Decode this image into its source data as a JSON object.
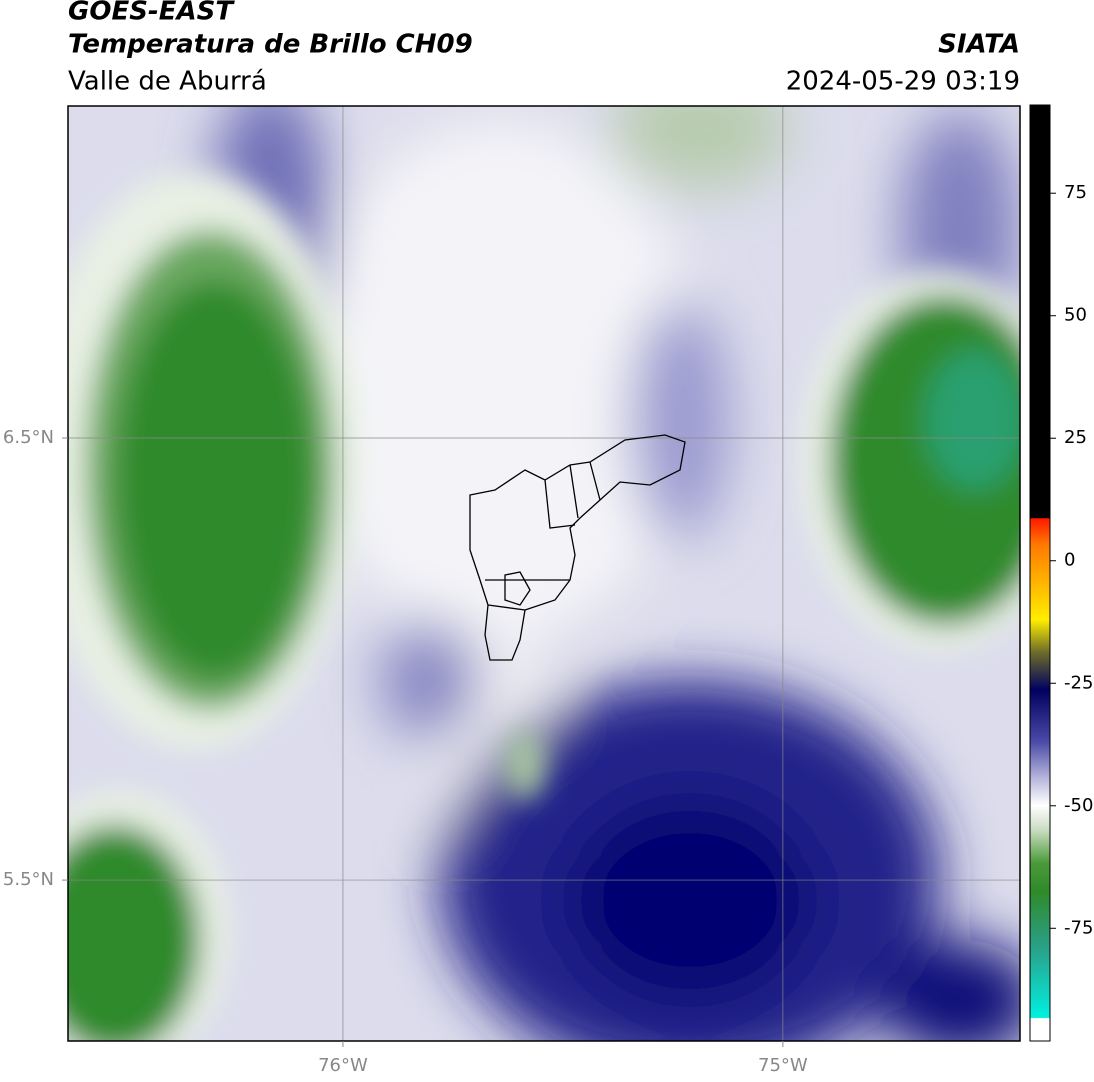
{
  "header": {
    "title": "GOES-EAST",
    "subtitle": "Temperatura de Brillo CH09",
    "region": "Valle de Aburrá",
    "source": "SIATA",
    "datetime": "2024-05-29 03:19"
  },
  "map": {
    "lonlim": [
      -76.625,
      -74.461
    ],
    "latlim": [
      5.136,
      7.251
    ],
    "lon_ticks": [
      {
        "value": -76,
        "label": "76°W"
      },
      {
        "value": -75,
        "label": "75°W"
      }
    ],
    "lat_ticks": [
      {
        "value": 6.5,
        "label": "6.5°N"
      },
      {
        "value": 5.5,
        "label": "5.5°N"
      }
    ],
    "grid": true
  },
  "colorbar": {
    "lim": [
      -98,
      93
    ],
    "ticks": [
      75,
      50,
      25,
      0,
      -25,
      -50,
      -75
    ]
  }
}
